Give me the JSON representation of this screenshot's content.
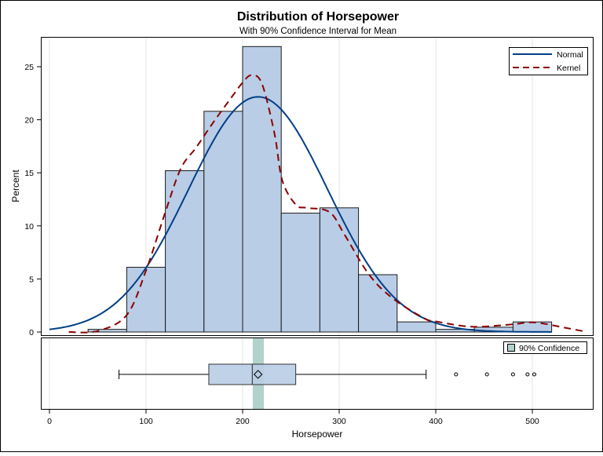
{
  "chart_data": {
    "type": "histogram",
    "title": "Distribution of Horsepower",
    "subtitle": "With 90% Confidence Interval for Mean",
    "xlabel": "Horsepower",
    "ylabel": "Percent",
    "xlim": [
      0,
      555
    ],
    "ylim": [
      0,
      27
    ],
    "x_ticks": [
      0,
      100,
      200,
      300,
      400,
      500
    ],
    "y_ticks": [
      0,
      5,
      10,
      15,
      20,
      25
    ],
    "grid": "vertical",
    "legend_placement": "top-right",
    "bins": {
      "edges": [
        40,
        80,
        120,
        160,
        200,
        240,
        280,
        320,
        360,
        400,
        440,
        480,
        520
      ],
      "percent": [
        0.25,
        6.1,
        15.2,
        20.8,
        26.9,
        11.2,
        11.7,
        5.4,
        0.95,
        0.25,
        0.45,
        0.95
      ]
    },
    "series": [
      {
        "name": "Normal",
        "type": "normal-density",
        "mean": 216,
        "sd": 72,
        "range": [
          0,
          520
        ],
        "color": "#003f87",
        "style": "solid"
      },
      {
        "name": "Kernel",
        "type": "kernel-density",
        "color": "#8b0000",
        "style": "dashed",
        "x": [
          20,
          50,
          80,
          100,
          120,
          136,
          152,
          170,
          190,
          200,
          209,
          220,
          233,
          241,
          255,
          266,
          290,
          306,
          331,
          355,
          388,
          400,
          437,
          477,
          502,
          534,
          554
        ],
        "y": [
          0,
          0.1,
          1.6,
          5.8,
          11.3,
          15.4,
          17.4,
          19.8,
          22.3,
          23.5,
          24.2,
          23.4,
          18.7,
          14.3,
          12.0,
          11.7,
          11.3,
          9.1,
          5.4,
          3.2,
          1.3,
          1.0,
          0.5,
          0.7,
          0.9,
          0.4,
          0.05
        ]
      }
    ],
    "boxplot": {
      "whisker_low": 72,
      "q1": 165,
      "median": 210,
      "mean": 216,
      "q3": 255,
      "whisker_high": 390,
      "outliers": [
        421,
        453,
        480,
        495,
        502
      ],
      "ci_90_mean": [
        210.5,
        222
      ]
    },
    "legend": {
      "normal": "Normal",
      "kernel": "Kernel",
      "confidence": "90% Confidence"
    },
    "colors": {
      "bar_fill": "#b9cde6",
      "bar_stroke": "#1a1a1a",
      "ci_band": "#b2d2cc",
      "normal": "#003f87",
      "kernel": "#8b0000"
    }
  }
}
